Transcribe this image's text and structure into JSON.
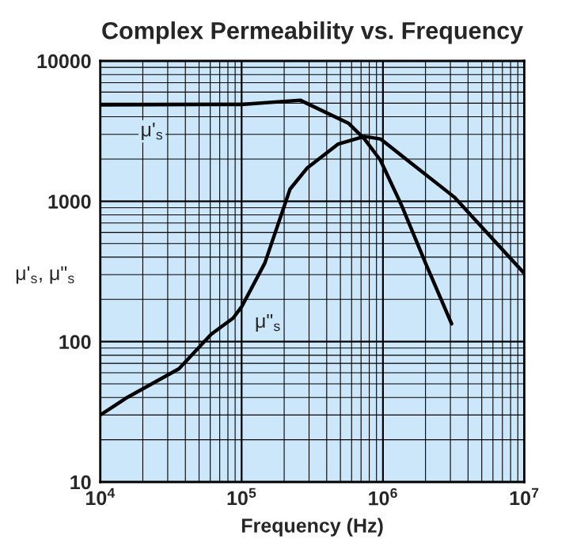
{
  "chart_data": {
    "type": "line",
    "title": "Complex Permeability vs. Frequency",
    "xlabel": "Frequency (Hz)",
    "ylabel": "μ'$_{s}$, μ\"$_{s}$",
    "log": "xy",
    "grid": true,
    "legend": false,
    "marker": "none",
    "line_style": "solid",
    "xlim": [
      10000,
      10000000
    ],
    "ylim": [
      10,
      10000
    ],
    "xticks": [
      {
        "value": 10000,
        "label": "10$^{4}$"
      },
      {
        "value": 100000,
        "label": "10$^{5}$"
      },
      {
        "value": 1000000,
        "label": "10$^{6}$"
      },
      {
        "value": 10000000,
        "label": "10$^{7}$"
      }
    ],
    "yticks": [
      10,
      100,
      1000,
      10000
    ],
    "series": [
      {
        "name": "μ'$_{s}$",
        "color": "#000000",
        "x": [
          10000,
          100000,
          260000,
          570000,
          740000,
          960000,
          1350000,
          2000000,
          3060000
        ],
        "values": [
          4870,
          4900,
          5250,
          3600,
          2780,
          1960,
          942,
          363,
          134
        ]
      },
      {
        "name": "μ\"$_{s}$",
        "color": "#000000",
        "x": [
          10000,
          15500,
          36000,
          61000,
          87000,
          100000,
          146000,
          220000,
          290000,
          480000,
          740000,
          960000,
          3200000,
          10000000
        ],
        "values": [
          30,
          40,
          64,
          113,
          147,
          177,
          363,
          1220,
          1720,
          2550,
          2900,
          2780,
          1070,
          306
        ]
      }
    ]
  }
}
